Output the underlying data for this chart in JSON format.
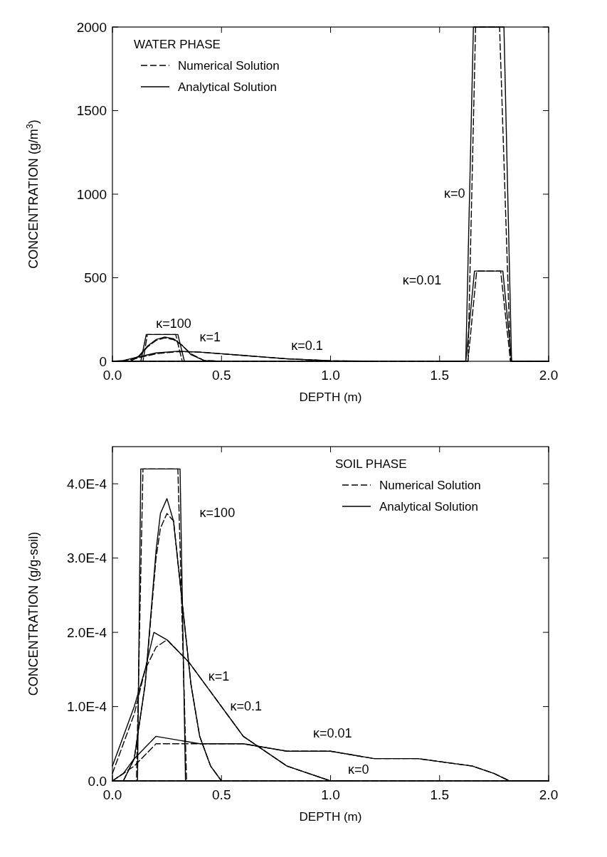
{
  "chart_data": [
    {
      "type": "line",
      "xlabel": "DEPTH (m)",
      "ylabel": "CONCENTRATION (g/m$^{3}$)",
      "xlim": [
        0,
        2
      ],
      "ylim": [
        0,
        2000
      ],
      "xticks": [
        {
          "value": 0,
          "label": "0.0"
        },
        {
          "value": 0.5,
          "label": "0.5"
        },
        {
          "value": 1,
          "label": "1.0"
        },
        {
          "value": 1.5,
          "label": "1.5"
        },
        {
          "value": 2,
          "label": "2.0"
        }
      ],
      "yticks": [
        0,
        500,
        1000,
        1500,
        2000
      ],
      "legend": "top left",
      "grid": false,
      "annotations": [
        "WATER PHASE",
        "κ=100",
        "κ=1",
        "κ=0.1",
        "κ=0",
        "κ=0.01"
      ],
      "series": [
        {
          "name": "Numerical Solution",
          "color": "#000000",
          "line_style": "dashed",
          "x": [
            0,
            1.63,
            1.665,
            1.775,
            1.825,
            2.0
          ],
          "values": [
            0,
            0,
            2000,
            2000,
            0,
            0
          ]
        },
        {
          "name": "Analytical Solution",
          "color": "#000000",
          "line_style": "solid",
          "x": [
            0,
            1.62,
            1.655,
            1.795,
            1.83,
            2.0
          ],
          "values": [
            0,
            0,
            2000,
            2000,
            0,
            0
          ]
        },
        {
          "color": "#000000",
          "line_style": "dashed",
          "x": [
            1.5,
            1.63,
            1.67,
            1.78,
            1.825,
            2.0
          ],
          "values": [
            0,
            0,
            540,
            540,
            0,
            0
          ]
        },
        {
          "color": "#000000",
          "line_style": "solid",
          "x": [
            1.5,
            1.62,
            1.66,
            1.79,
            1.83,
            2.0
          ],
          "values": [
            0,
            0,
            540,
            540,
            0,
            0
          ]
        },
        {
          "color": "#000000",
          "line_style": "dashed",
          "x": [
            0,
            0.14,
            0.16,
            0.29,
            0.32,
            0.5
          ],
          "values": [
            0,
            0,
            160,
            160,
            0,
            0
          ]
        },
        {
          "color": "#000000",
          "line_style": "solid",
          "x": [
            0,
            0.13,
            0.155,
            0.3,
            0.33,
            0.5
          ],
          "values": [
            0,
            0,
            160,
            160,
            0,
            0
          ]
        },
        {
          "color": "#000000",
          "line_style": "dashed",
          "x": [
            0,
            0.08,
            0.12,
            0.16,
            0.2,
            0.24,
            0.28,
            0.32,
            0.36,
            0.42,
            0.5
          ],
          "values": [
            0,
            0,
            25,
            85,
            125,
            140,
            130,
            95,
            45,
            5,
            0
          ]
        },
        {
          "color": "#000000",
          "line_style": "solid",
          "x": [
            0,
            0.08,
            0.12,
            0.16,
            0.2,
            0.24,
            0.28,
            0.32,
            0.36,
            0.42,
            0.5
          ],
          "values": [
            0,
            0,
            30,
            90,
            130,
            145,
            135,
            95,
            40,
            5,
            0
          ]
        },
        {
          "color": "#000000",
          "line_style": "dashed",
          "x": [
            0,
            0.05,
            0.1,
            0.2,
            0.3,
            0.4,
            0.5,
            0.6,
            0.7,
            0.8,
            1.0,
            1.2
          ],
          "values": [
            0,
            3,
            15,
            45,
            58,
            55,
            45,
            35,
            25,
            15,
            3,
            0
          ]
        },
        {
          "color": "#000000",
          "line_style": "solid",
          "x": [
            0,
            0.05,
            0.1,
            0.2,
            0.3,
            0.4,
            0.5,
            0.6,
            0.7,
            0.8,
            1.0,
            1.2
          ],
          "values": [
            0,
            5,
            20,
            50,
            60,
            55,
            45,
            35,
            25,
            15,
            3,
            0
          ]
        }
      ]
    },
    {
      "type": "line",
      "xlabel": "DEPTH (m)",
      "ylabel": "CONCENTRATION (g/g-soil)",
      "xlim": [
        0,
        2
      ],
      "ylim": [
        0,
        0.00045
      ],
      "xticks": [
        {
          "value": 0,
          "label": "0.0"
        },
        {
          "value": 0.5,
          "label": "0.5"
        },
        {
          "value": 1,
          "label": "1.0"
        },
        {
          "value": 1.5,
          "label": "1.5"
        },
        {
          "value": 2,
          "label": "2.0"
        }
      ],
      "yticks": [
        {
          "value": 0,
          "label": "0.0"
        },
        {
          "value": 0.0001,
          "label": "1.0E-4"
        },
        {
          "value": 0.0002,
          "label": "2.0E-4"
        },
        {
          "value": 0.0003,
          "label": "3.0E-4"
        },
        {
          "value": 0.0004,
          "label": "4.0E-4"
        }
      ],
      "legend": "top right",
      "grid": false,
      "annotations": [
        "SOIL PHASE",
        "κ=100",
        "κ=1",
        "κ=0.1",
        "κ=0.01",
        "κ=0"
      ],
      "series": [
        {
          "name": "Numerical Solution",
          "color": "#000000",
          "line_style": "dashed",
          "x": [
            0,
            0.11,
            0.14,
            0.3,
            0.34,
            0.5
          ],
          "values": [
            0,
            0,
            0.00042,
            0.00042,
            0,
            0
          ]
        },
        {
          "name": "Analytical Solution",
          "color": "#000000",
          "line_style": "solid",
          "x": [
            0,
            0.115,
            0.13,
            0.31,
            0.335,
            0.5
          ],
          "values": [
            0,
            0,
            0.00042,
            0.00042,
            0,
            0
          ]
        },
        {
          "color": "#000000",
          "line_style": "dashed",
          "x": [
            0.05,
            0.1,
            0.15,
            0.2,
            0.22,
            0.25,
            0.28,
            0.32,
            0.36,
            0.4,
            0.45,
            0.5
          ],
          "values": [
            0,
            3e-05,
            0.00013,
            0.0003,
            0.00034,
            0.00036,
            0.00035,
            0.00024,
            0.00013,
            6e-05,
            2e-05,
            0
          ]
        },
        {
          "color": "#000000",
          "line_style": "solid",
          "x": [
            0.05,
            0.1,
            0.15,
            0.2,
            0.22,
            0.25,
            0.28,
            0.32,
            0.36,
            0.4,
            0.45,
            0.5
          ],
          "values": [
            0,
            3e-05,
            0.00013,
            0.00031,
            0.00036,
            0.00038,
            0.00035,
            0.00024,
            0.00013,
            6e-05,
            2e-05,
            0
          ]
        },
        {
          "color": "#000000",
          "line_style": "dashed",
          "x": [
            0,
            0.1,
            0.15,
            0.2,
            0.25,
            0.35,
            0.45,
            0.6,
            0.8,
            1.0,
            1.1
          ],
          "values": [
            1e-05,
            9e-05,
            0.00015,
            0.00018,
            0.00019,
            0.00016,
            0.00012,
            6e-05,
            2e-05,
            0,
            0
          ]
        },
        {
          "color": "#000000",
          "line_style": "solid",
          "x": [
            0,
            0.1,
            0.15,
            0.19,
            0.25,
            0.35,
            0.45,
            0.6,
            0.8,
            1.0,
            1.1
          ],
          "values": [
            2e-05,
            0.0001,
            0.00015,
            0.0002,
            0.00019,
            0.00016,
            0.00012,
            6e-05,
            2e-05,
            0,
            0
          ]
        },
        {
          "color": "#000000",
          "line_style": "dashed",
          "x": [
            0,
            0.05,
            0.1,
            0.2,
            0.4,
            0.6,
            0.8,
            1.0,
            1.2,
            1.4,
            1.65,
            1.75,
            1.82,
            2.0
          ],
          "values": [
            0,
            1e-05,
            2e-05,
            5e-05,
            5e-05,
            5e-05,
            4e-05,
            4e-05,
            3e-05,
            3e-05,
            2e-05,
            1e-05,
            0,
            0
          ]
        },
        {
          "color": "#000000",
          "line_style": "solid",
          "x": [
            0,
            0.05,
            0.1,
            0.2,
            0.4,
            0.6,
            0.8,
            1.0,
            1.2,
            1.4,
            1.65,
            1.75,
            1.82,
            2.0
          ],
          "values": [
            0,
            1e-05,
            3e-05,
            6e-05,
            5e-05,
            5e-05,
            4e-05,
            4e-05,
            3e-05,
            3e-05,
            2e-05,
            1e-05,
            0,
            0
          ]
        },
        {
          "color": "#000000",
          "line_style": "dashed",
          "x": [
            0,
            2
          ],
          "values": [
            0,
            0
          ]
        },
        {
          "color": "#000000",
          "line_style": "solid",
          "x": [
            0,
            2
          ],
          "values": [
            0,
            0
          ]
        }
      ]
    }
  ]
}
